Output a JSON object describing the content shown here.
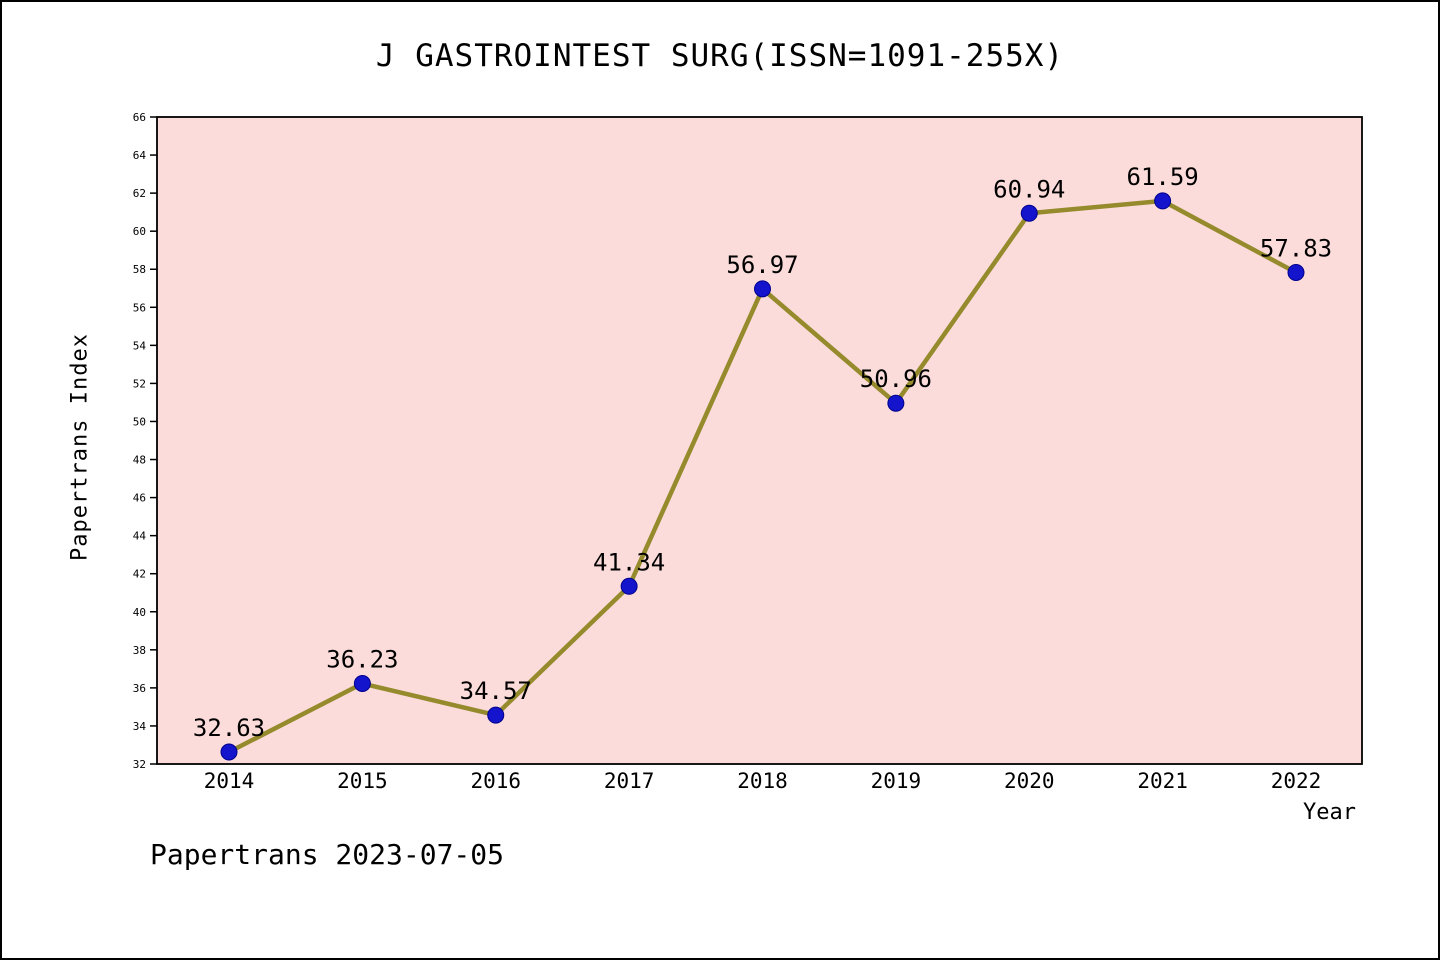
{
  "chart_data": {
    "type": "line",
    "title": "J GASTROINTEST SURG(ISSN=1091-255X)",
    "xlabel": "Year",
    "ylabel": "Papertrans Index",
    "categories": [
      "2014",
      "2015",
      "2016",
      "2017",
      "2018",
      "2019",
      "2020",
      "2021",
      "2022"
    ],
    "values": [
      32.63,
      36.23,
      34.57,
      41.34,
      56.97,
      50.96,
      60.94,
      61.59,
      57.83
    ],
    "ylim": [
      32,
      66
    ],
    "ytick_step": 2,
    "grid": false,
    "legend": "none",
    "line_color": "#958a2c",
    "marker_color": "#1414cc",
    "marker_edge_color": "#00008b",
    "plot_bg": "#fbdcda",
    "axis_color": "#000000",
    "footer": "Papertrans 2023-07-05"
  }
}
